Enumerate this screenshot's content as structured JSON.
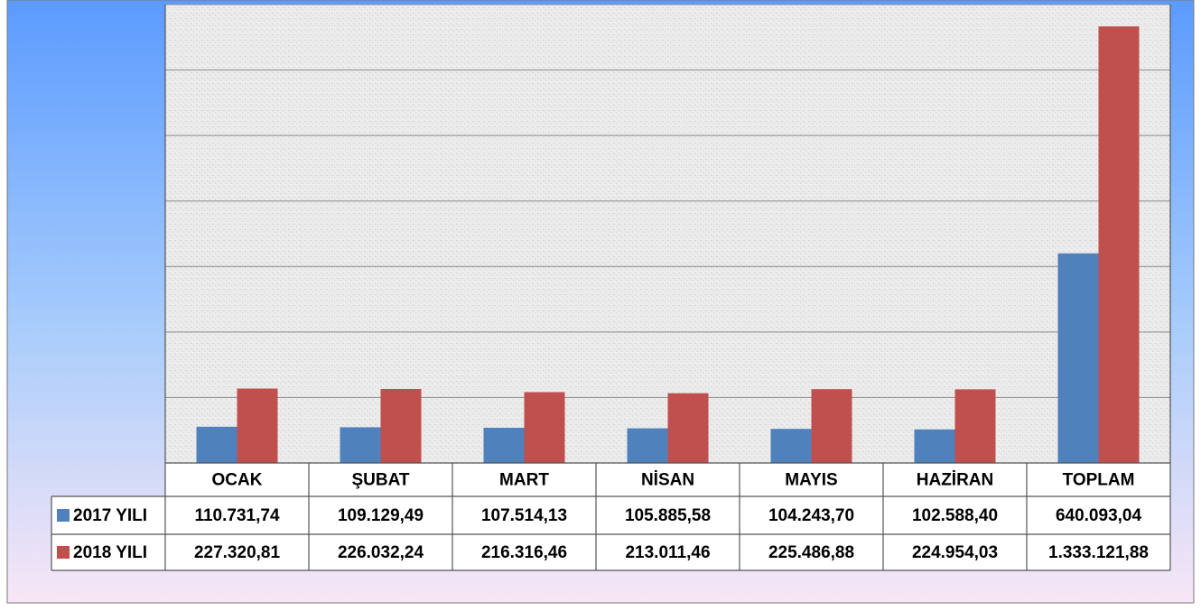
{
  "chart_data": {
    "type": "bar",
    "categories": [
      "OCAK",
      "ŞUBAT",
      "MART",
      "NİSAN",
      "MAYIS",
      "HAZİRAN",
      "TOPLAM"
    ],
    "series": [
      {
        "name": "2017 YILI",
        "color": "#4f81bd",
        "values": [
          110731.74,
          109129.49,
          107514.13,
          105885.58,
          104243.7,
          102588.4,
          640093.04
        ],
        "value_labels": [
          "110.731,74",
          "109.129,49",
          "107.514,13",
          "105.885,58",
          "104.243,70",
          "102.588,40",
          "640.093,04"
        ]
      },
      {
        "name": "2018 YILI",
        "color": "#c0504d",
        "values": [
          227320.81,
          226032.24,
          216316.46,
          213011.46,
          225486.88,
          224954.03,
          1333121.88
        ],
        "value_labels": [
          "227.320,81",
          "226.032,24",
          "216.316,46",
          "213.011,46",
          "225.486,88",
          "224.954,03",
          "1.333.121,88"
        ]
      }
    ],
    "ylim": [
      0,
      1400000
    ],
    "yticks": [
      0,
      200000,
      400000,
      600000,
      800000,
      1000000,
      1200000,
      1400000
    ],
    "grid": true
  }
}
